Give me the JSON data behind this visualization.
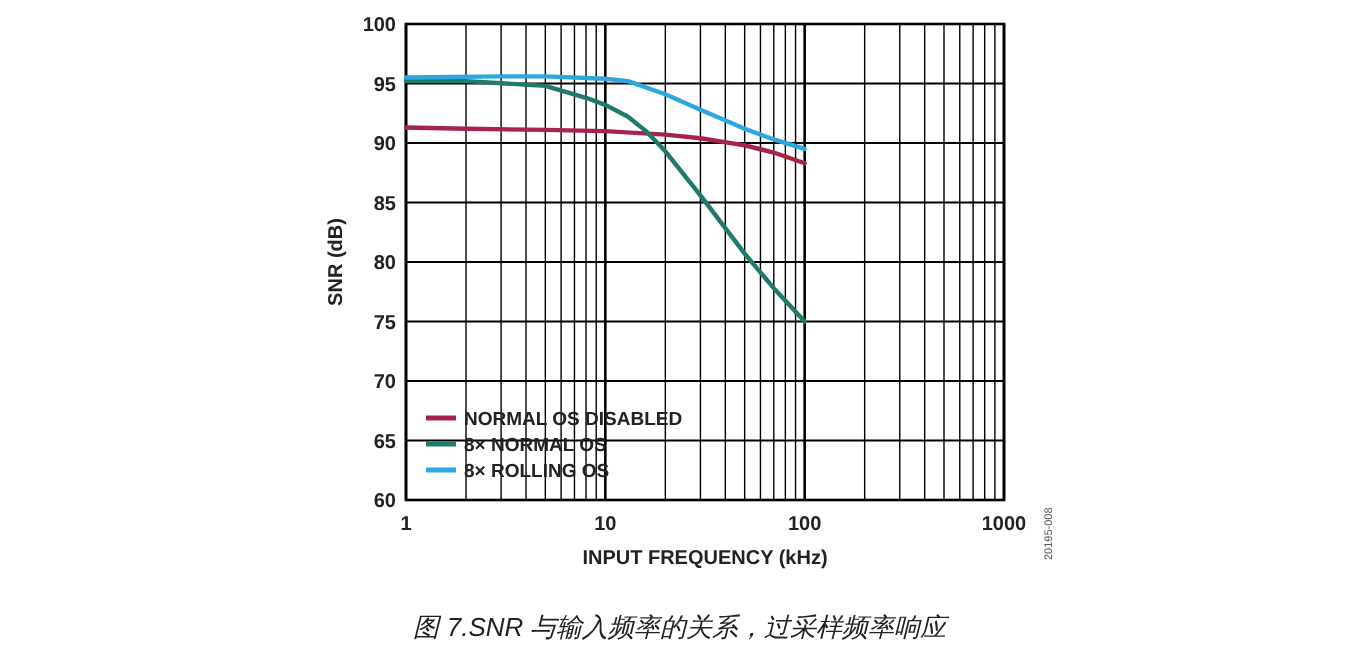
{
  "chart_data": {
    "type": "line",
    "xlabel": "INPUT FREQUENCY (kHz)",
    "ylabel": "SNR (dB)",
    "log": "x",
    "xlim": [
      1,
      1000
    ],
    "ylim": [
      60,
      100
    ],
    "xticks": [
      1,
      10,
      100,
      1000
    ],
    "yticks": [
      60,
      65,
      70,
      75,
      80,
      85,
      90,
      95,
      100
    ],
    "grid": true,
    "legend": "bottom left",
    "line_style": "solid",
    "annotations": [
      "20195-008",
      "图 7.SNR 与输入频率的关系，过采样频率响应"
    ],
    "series": [
      {
        "name": "NORMAL OS DISABLED",
        "color": "#a8234a",
        "x": [
          1,
          2,
          5,
          10,
          20,
          30,
          50,
          70,
          100
        ],
        "values": [
          91.3,
          91.2,
          91.1,
          91.0,
          90.7,
          90.4,
          89.8,
          89.2,
          88.3
        ]
      },
      {
        "name": "8× NORMAL OS",
        "color": "#1f7a6b",
        "x": [
          1,
          2,
          5,
          8,
          10,
          13,
          16,
          20,
          30,
          50,
          70,
          100
        ],
        "values": [
          95.2,
          95.2,
          94.8,
          93.8,
          93.2,
          92.2,
          91.0,
          89.3,
          85.6,
          80.7,
          77.8,
          75.0
        ]
      },
      {
        "name": "8× ROLLING OS",
        "color": "#2ba8e0",
        "x": [
          1,
          3,
          5,
          10,
          13,
          20,
          30,
          50,
          70,
          100
        ],
        "values": [
          95.5,
          95.6,
          95.6,
          95.4,
          95.2,
          94.1,
          92.8,
          91.2,
          90.3,
          89.5
        ]
      }
    ]
  }
}
